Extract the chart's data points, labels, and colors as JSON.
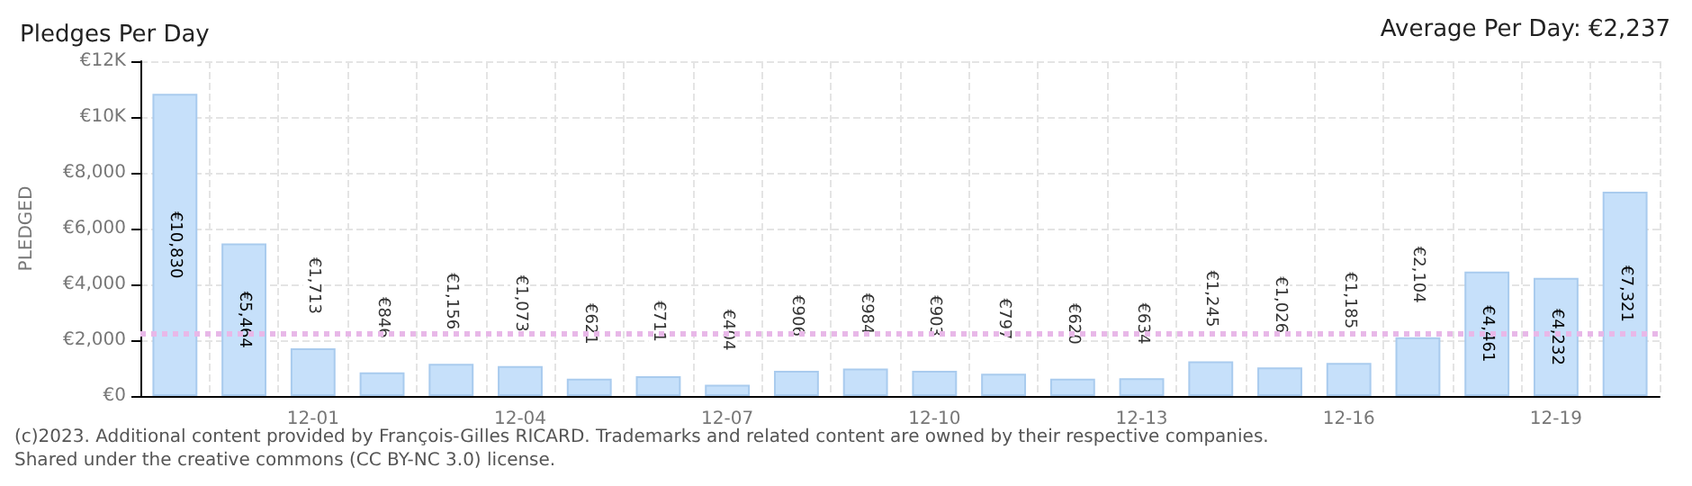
{
  "chart_data": {
    "type": "bar",
    "title": "Pledges Per Day",
    "subtitle": "Average Per Day: €2,237",
    "categories": [
      null,
      null,
      "12-01",
      null,
      null,
      "12-04",
      null,
      null,
      "12-07",
      null,
      null,
      "12-10",
      null,
      null,
      "12-13",
      null,
      null,
      "12-16",
      null,
      null,
      "12-19",
      null
    ],
    "values": [
      10830,
      5464,
      1713,
      846,
      1156,
      1073,
      621,
      711,
      404,
      906,
      984,
      903,
      797,
      620,
      634,
      1245,
      1026,
      1185,
      2104,
      4461,
      4232,
      7321
    ],
    "value_labels": [
      "€10,830",
      "€5,464",
      "€1,713",
      "€846",
      "€1,156",
      "€1,073",
      "€621",
      "€711",
      "€404",
      "€906",
      "€984",
      "€903",
      "€797",
      "€620",
      "€634",
      "€1,245",
      "€1,026",
      "€1,185",
      "€2,104",
      "€4,461",
      "€4,232",
      "€7,321"
    ],
    "color": "#c6e0fa",
    "ylabel": "PLEDGED",
    "ylim": [
      0,
      12000
    ],
    "yticks": [
      {
        "value": 0,
        "label": "€0"
      },
      {
        "value": 2000,
        "label": "€2,000"
      },
      {
        "value": 4000,
        "label": "€4,000"
      },
      {
        "value": 6000,
        "label": "€6,000"
      },
      {
        "value": 8000,
        "label": "€8,000"
      },
      {
        "value": 10000,
        "label": "€10K"
      },
      {
        "value": 12000,
        "label": "€12K"
      }
    ],
    "grid": true,
    "ref_lines": [
      {
        "axis": "y",
        "value": 2237,
        "color": "#e8b8e8",
        "line_style": "dotted"
      }
    ],
    "annotations": [
      "(c)2023. Additional content provided by François-Gilles RICARD. Trademarks and related content are owned by their respective companies.",
      "Shared under the creative commons (CC BY-NC 3.0) license."
    ]
  }
}
